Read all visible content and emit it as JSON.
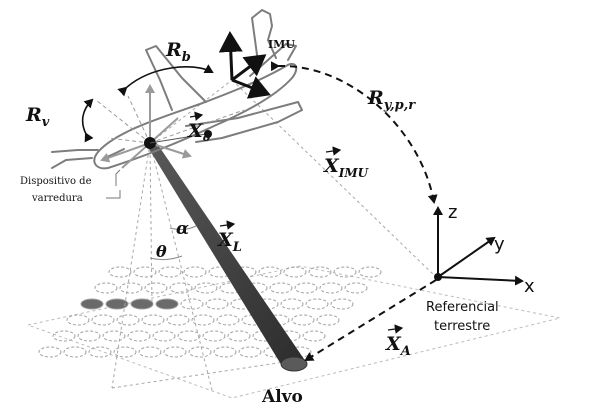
{
  "colors": {
    "ink": "#111111",
    "outline": "#7a7a7a",
    "beam": "#3f3f3f",
    "spot": "#6a6a6a",
    "ring": "#9a9a9a"
  },
  "labels": {
    "imu": "IMU",
    "r_b": "R",
    "r_b_sub": "b",
    "r_v": "R",
    "r_v_sub": "v",
    "x_o": "X",
    "x_o_sub": "o",
    "scanner_line1": "Dispositivo de",
    "scanner_line2": "varredura",
    "r_ypr": "R",
    "r_ypr_sub": "y,p,r",
    "x_imu": "X",
    "x_imu_sub": "IMU",
    "alpha": "α",
    "theta": "θ",
    "x_l": "X",
    "x_l_sub": "L",
    "axis_z": "z",
    "axis_y": "y",
    "axis_x": "x",
    "ref_line1": "Referencial",
    "ref_line2": "terrestre",
    "x_a": "X",
    "x_a_sub": "A",
    "target": "Alvo"
  },
  "icons": [
    "aircraft-outline",
    "imu-axes",
    "scanner-axes",
    "ground-frame-axes",
    "laser-beam",
    "scan-footprints"
  ]
}
